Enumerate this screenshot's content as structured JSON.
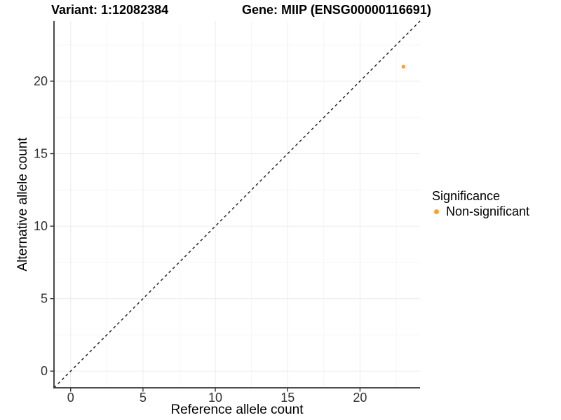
{
  "chart_data": {
    "type": "scatter",
    "title_left": "Variant: 1:12082384",
    "title_right": "Gene: MIIP (ENSG00000116691)",
    "xlabel": "Reference allele count",
    "ylabel": "Alternative allele count",
    "xlim": [
      -1.15,
      24.15
    ],
    "ylim": [
      -1.15,
      24.15
    ],
    "x_ticks": [
      0,
      5,
      10,
      15,
      20
    ],
    "y_ticks": [
      0,
      5,
      10,
      15,
      20
    ],
    "x_minor": [
      2.5,
      7.5,
      12.5,
      17.5,
      22.5
    ],
    "y_minor": [
      2.5,
      7.5,
      12.5,
      17.5,
      22.5
    ],
    "grid": "major and minor, light gray on white",
    "identity_line": {
      "slope": 1,
      "intercept": 0,
      "style": "dashed",
      "color": "#1a1a1a"
    },
    "series": [
      {
        "name": "Non-significant",
        "color": "#F9A02B",
        "points": [
          [
            23,
            21
          ]
        ]
      }
    ],
    "legend": {
      "position": "right",
      "title": "Significance",
      "items": [
        {
          "label": "Non-significant",
          "color": "#F9A02B"
        }
      ]
    }
  },
  "colors": {
    "point": "#F9A02B",
    "axis": "#333333",
    "grid_major": "#ececec",
    "grid_minor": "#f5f5f5",
    "tick_text": "#333333"
  }
}
